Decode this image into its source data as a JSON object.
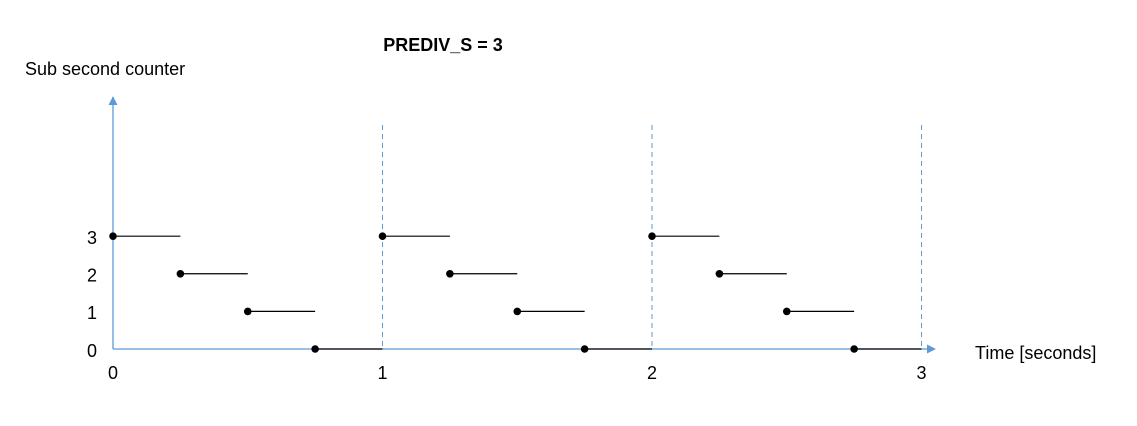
{
  "chart_data": {
    "type": "step",
    "title": "PREDIV_S = 3",
    "y_label": "Sub second counter",
    "x_label": "Time [seconds]",
    "x": [
      0,
      0.25,
      0.5,
      0.75,
      1,
      1.25,
      1.5,
      1.75,
      2,
      2.25,
      2.5,
      2.75
    ],
    "values": [
      3,
      2,
      1,
      0,
      3,
      2,
      1,
      0,
      3,
      2,
      1,
      0
    ],
    "color": "#000000",
    "axis_color": "#5b9bd5",
    "xlim": [
      0,
      3.05
    ],
    "ylim": [
      0,
      6.7
    ],
    "xticks": [
      0,
      1,
      2,
      3
    ],
    "yticks": [
      0,
      1,
      2,
      3
    ],
    "grid": true
  }
}
